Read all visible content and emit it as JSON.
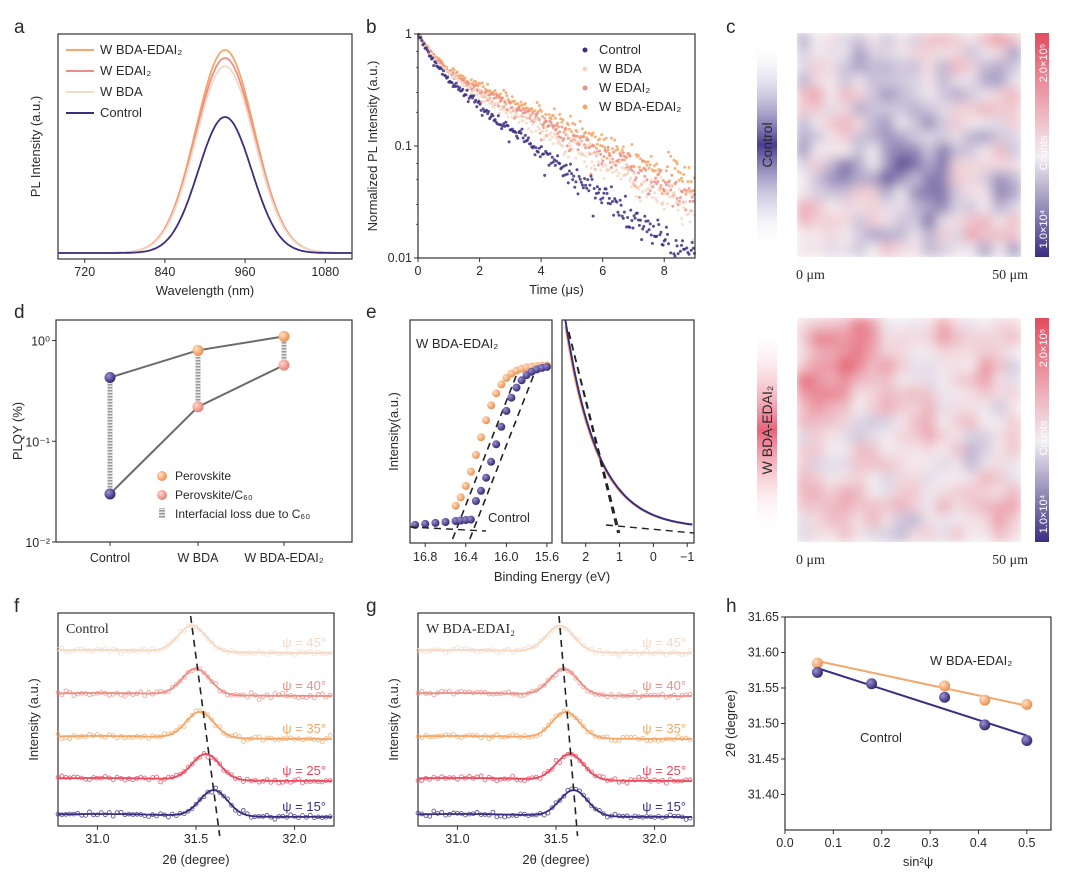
{
  "colors": {
    "control": "#3b2e80",
    "wbda": "#f4d9c6",
    "wedai2": "#ec8f86",
    "wbdaedai2": "#f3a768",
    "pink_edai": "#e84a5f",
    "gray_line": "#777777",
    "heat_low": "#4a3a8a",
    "heat_mid": "#f4eef2",
    "heat_high": "#e24c5f"
  },
  "panels": {
    "a": "a",
    "b": "b",
    "c": "c",
    "d": "d",
    "e": "e",
    "f": "f",
    "g": "g",
    "h": "h"
  },
  "chart_data": [
    {
      "id": "a",
      "type": "line",
      "title": "",
      "xlabel": "Wavelength (nm)",
      "ylabel": "PL Intensity (a.u.)",
      "xlim": [
        680,
        1120
      ],
      "xticks": [
        "720",
        "840",
        "960",
        "1080"
      ],
      "xtick_values": [
        720,
        840,
        960,
        1080
      ],
      "legend": [
        "W BDA-EDAI₂",
        "W EDAI₂",
        "W BDA",
        "Control"
      ],
      "series": [
        {
          "name": "W BDA-EDAI₂",
          "color_key": "wbdaedai2",
          "center": 930,
          "sigma": 44,
          "amplitude": 1.0
        },
        {
          "name": "W EDAI₂",
          "color_key": "wedai2",
          "center": 930,
          "sigma": 44,
          "amplitude": 0.96
        },
        {
          "name": "W BDA",
          "color_key": "wbda",
          "center": 930,
          "sigma": 44,
          "amplitude": 0.92
        },
        {
          "name": "Control",
          "color_key": "control",
          "center": 930,
          "sigma": 40,
          "amplitude": 0.67
        }
      ]
    },
    {
      "id": "b",
      "type": "scatter",
      "xlabel": "Time (μs)",
      "ylabel": "Normalized PL Intensity (a.u.)",
      "xlim": [
        0,
        9
      ],
      "ylim": [
        0.01,
        1
      ],
      "yscale": "log",
      "xticks": [
        "0",
        "2",
        "4",
        "6",
        "8"
      ],
      "xtick_values": [
        0,
        2,
        4,
        6,
        8
      ],
      "yticks": [
        "0.01",
        "0.1",
        "1"
      ],
      "ytick_values": [
        0.01,
        0.1,
        1
      ],
      "legend": [
        "Control",
        "W BDA",
        "W EDAI₂",
        "W BDA-EDAI₂"
      ],
      "series": [
        {
          "name": "Control",
          "color_key": "control",
          "a1": 0.45,
          "t1": 0.45,
          "a2": 0.55,
          "t2": 2.2
        },
        {
          "name": "W BDA",
          "color_key": "wbda",
          "a1": 0.45,
          "t1": 0.45,
          "a2": 0.55,
          "t2": 2.9
        },
        {
          "name": "W EDAI₂",
          "color_key": "wedai2",
          "a1": 0.42,
          "t1": 0.45,
          "a2": 0.58,
          "t2": 3.1
        },
        {
          "name": "W BDA-EDAI₂",
          "color_key": "wbdaedai2",
          "a1": 0.4,
          "t1": 0.45,
          "a2": 0.6,
          "t2": 3.5
        }
      ]
    },
    {
      "id": "c",
      "type": "heatmap",
      "maps": [
        {
          "label": "Control",
          "bias": 0.45
        },
        {
          "label": "W BDA-EDAI₂",
          "bias": 0.62
        }
      ],
      "x_start": "0 μm",
      "x_end": "50 μm",
      "colorbar_top": "2.0×10⁵",
      "colorbar_bottom": "1.0×10⁴",
      "colorbar_label": "Counts"
    },
    {
      "id": "d",
      "type": "scatter",
      "xlabel": "",
      "ylabel": "PLQY (%)",
      "yscale": "log",
      "ylim": [
        0.01,
        1.6
      ],
      "categories": [
        "Control",
        "W BDA",
        "W BDA-EDAI₂"
      ],
      "yticks": [
        "10⁰",
        "10⁻¹",
        "10⁻²"
      ],
      "ytick_values": [
        1,
        0.1,
        0.01
      ],
      "series": [
        {
          "name": "Perovskite",
          "values": [
            0.43,
            0.8,
            1.1
          ]
        },
        {
          "name": "Perovskite/C₆₀",
          "values": [
            0.03,
            0.22,
            0.57
          ]
        }
      ],
      "legend": [
        "Perovskite",
        "Perovskite/C₆₀",
        "Interfacial loss due to C₆₀"
      ]
    },
    {
      "id": "e",
      "type": "scatter",
      "xlabel": "Binding Energy (eV)",
      "ylabel": "Intensity(a.u.)",
      "sample_label": "W BDA-EDAI₂",
      "control_label": "Control",
      "left_xlim": [
        16.95,
        15.55
      ],
      "left_xticks": [
        "16.8",
        "16.4",
        "16.0",
        "15.6"
      ],
      "left_xtick_values": [
        16.8,
        16.4,
        16.0,
        15.6
      ],
      "right_xlim": [
        2.7,
        -1.2
      ],
      "right_xticks": [
        "2",
        "1",
        "0",
        "−1"
      ],
      "right_xtick_values": [
        2,
        1,
        0,
        -1
      ],
      "secondary_electron_cutoff": {
        "W BDA-EDAI₂": 16.45,
        "Control": 16.28
      },
      "valence_band_onset": {
        "W BDA-EDAI₂": 1.05,
        "Control": 1.0
      },
      "series": [
        {
          "name": "W BDA-EDAI₂",
          "color_key": "wbdaedai2",
          "x": [
            16.9,
            16.8,
            16.7,
            16.6,
            16.5,
            16.45,
            16.4,
            16.35,
            16.3,
            16.25,
            16.2,
            16.15,
            16.1,
            16.05,
            16.0,
            15.95,
            15.9,
            15.85,
            15.8,
            15.75,
            15.7,
            15.65,
            15.6
          ]
        },
        {
          "name": "Control",
          "color_key": "control",
          "x": [
            16.9,
            16.8,
            16.7,
            16.6,
            16.5,
            16.45,
            16.4,
            16.35,
            16.3,
            16.25,
            16.2,
            16.15,
            16.1,
            16.05,
            16.0,
            15.95,
            15.9,
            15.85,
            15.8,
            15.75,
            15.7,
            15.65,
            15.6
          ]
        }
      ]
    },
    {
      "id": "f",
      "type": "line",
      "sample_label": "Control",
      "xlabel": "2θ (degree)",
      "ylabel": "Intensity (a.u.)",
      "xlim": [
        30.8,
        32.2
      ],
      "xticks": [
        "31.0",
        "31.5",
        "32.0"
      ],
      "xtick_values": [
        31.0,
        31.5,
        32.0
      ],
      "series": [
        {
          "psi": "ψ = 45°",
          "peak": 31.48,
          "color_key": "wbda"
        },
        {
          "psi": "ψ = 40°",
          "peak": 31.5,
          "color_key": "wedai2"
        },
        {
          "psi": "ψ = 35°",
          "peak": 31.52,
          "color_key": "wbdaedai2"
        },
        {
          "psi": "ψ = 25°",
          "peak": 31.55,
          "color_key": "pink_edai"
        },
        {
          "psi": "ψ = 15°",
          "peak": 31.59,
          "color_key": "control"
        }
      ]
    },
    {
      "id": "g",
      "type": "line",
      "sample_label": "W BDA-EDAI₂",
      "xlabel": "2θ (degree)",
      "ylabel": "Intensity (a.u.)",
      "xlim": [
        30.8,
        32.2
      ],
      "xticks": [
        "31.0",
        "31.5",
        "32.0"
      ],
      "xtick_values": [
        31.0,
        31.5,
        32.0
      ],
      "series": [
        {
          "psi": "ψ = 45°",
          "peak": 31.52,
          "color_key": "wbda"
        },
        {
          "psi": "ψ = 40°",
          "peak": 31.54,
          "color_key": "wedai2"
        },
        {
          "psi": "ψ = 35°",
          "peak": 31.55,
          "color_key": "wbdaedai2"
        },
        {
          "psi": "ψ = 25°",
          "peak": 31.57,
          "color_key": "pink_edai"
        },
        {
          "psi": "ψ = 15°",
          "peak": 31.59,
          "color_key": "control"
        }
      ]
    },
    {
      "id": "h",
      "type": "scatter",
      "xlabel": "sin²ψ",
      "ylabel": "2θ (degree)",
      "xlim": [
        0.0,
        0.55
      ],
      "ylim": [
        31.35,
        31.65
      ],
      "xticks": [
        "0.0",
        "0.1",
        "0.2",
        "0.3",
        "0.4",
        "0.5"
      ],
      "xtick_values": [
        0.0,
        0.1,
        0.2,
        0.3,
        0.4,
        0.5
      ],
      "yticks": [
        "31.40",
        "31.45",
        "31.50",
        "31.55",
        "31.60",
        "31.65"
      ],
      "ytick_values": [
        31.4,
        31.45,
        31.5,
        31.55,
        31.6,
        31.65
      ],
      "series": [
        {
          "name": "W BDA-EDAI₂",
          "color_key": "wbdaedai2",
          "x": [
            0.067,
            0.33,
            0.413,
            0.5
          ],
          "y": [
            31.585,
            31.553,
            31.533,
            31.527
          ],
          "fit": [
            31.588,
            31.525
          ]
        },
        {
          "name": "Control",
          "color_key": "control",
          "x": [
            0.067,
            0.179,
            0.33,
            0.413,
            0.5
          ],
          "y": [
            31.572,
            31.556,
            31.537,
            31.498,
            31.476
          ],
          "fit": [
            31.578,
            31.483
          ]
        }
      ],
      "labels": [
        "W BDA-EDAI₂",
        "Control"
      ]
    }
  ]
}
